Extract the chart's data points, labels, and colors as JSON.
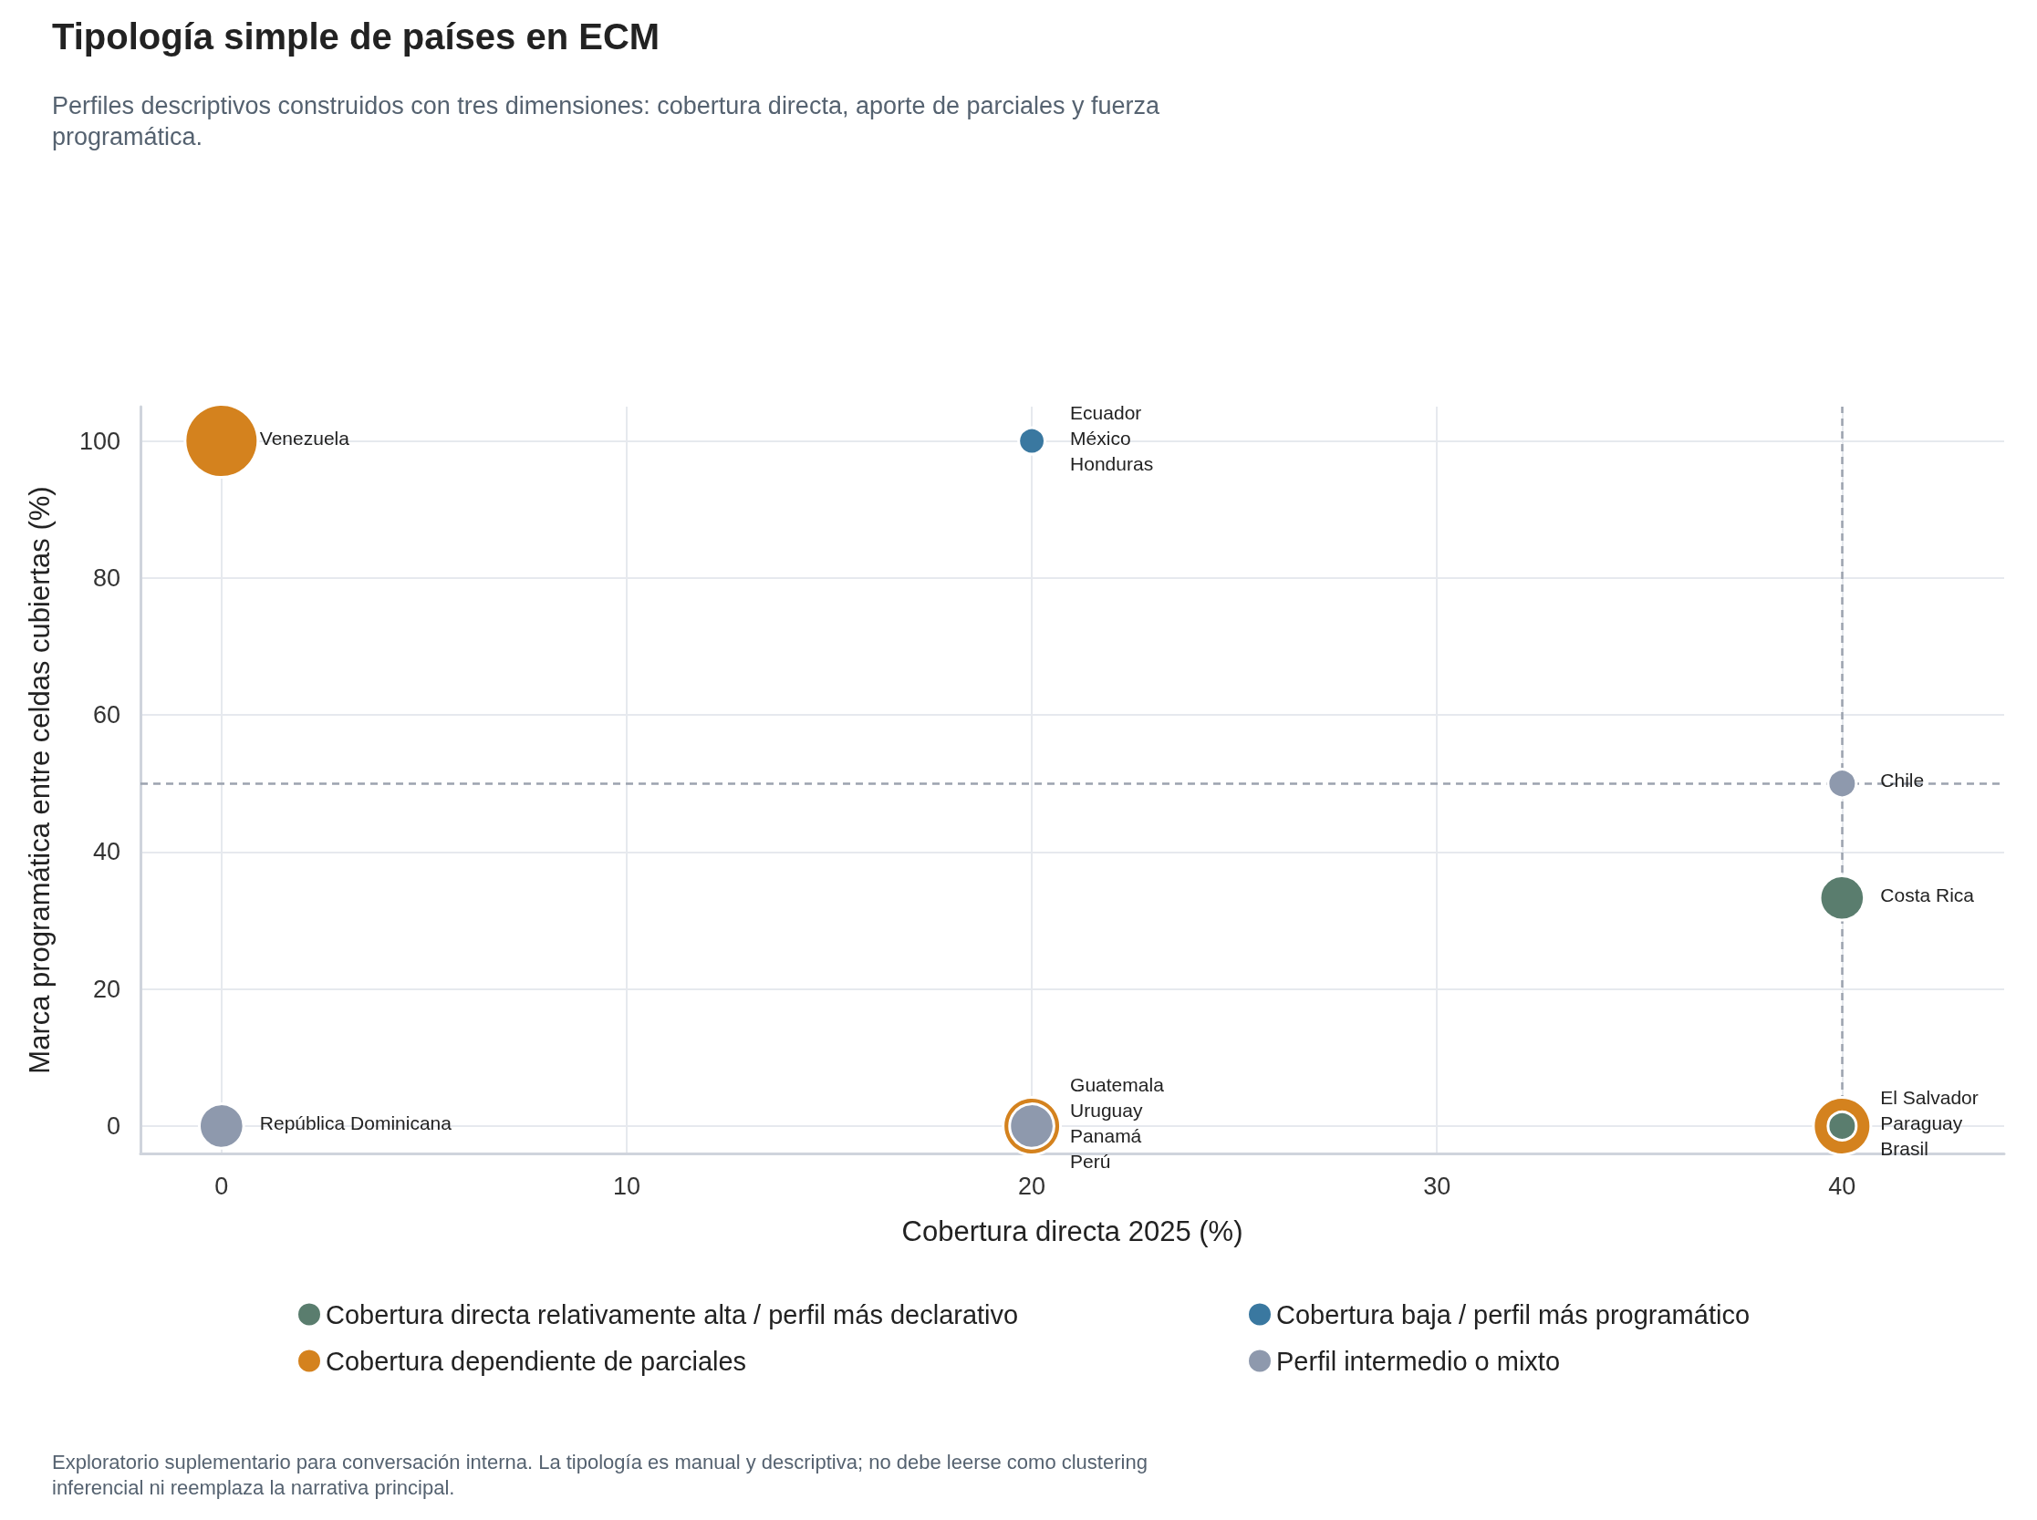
{
  "chart_data": {
    "type": "bubble",
    "title": "Tipología simple de países en ECM",
    "subtitle": "Perfiles descriptivos construidos con tres dimensiones: cobertura directa, aporte de parciales y fuerza programática.",
    "xlabel": "Cobertura directa 2025 (%)",
    "ylabel": "Marca programática entre celdas cubiertas (%)",
    "xlim": [
      -2,
      44
    ],
    "xticks": [
      0,
      10,
      20,
      30,
      40
    ],
    "ylim": [
      -4,
      105
    ],
    "yticks": [
      0,
      20,
      40,
      60,
      80,
      100
    ],
    "grid": true,
    "legend": "bottom",
    "marker": "circle",
    "series": [
      {
        "name": "Cobertura directa relativamente alta / perfil más declarativo",
        "color": "#5a7d6e",
        "x": [
          40,
          40
        ],
        "values": [
          33.3,
          0
        ],
        "sizes": [
          0.37,
          0.15
        ]
      },
      {
        "name": "Cobertura baja / perfil más programático",
        "color": "#3a78a0",
        "x": [
          20
        ],
        "values": [
          100
        ],
        "sizes": [
          0.13
        ]
      },
      {
        "name": "Cobertura dependiente de parciales",
        "color": "#d4821e",
        "x": [
          0,
          20,
          40
        ],
        "values": [
          100,
          0,
          0
        ],
        "sizes": [
          1,
          0.62,
          0.62
        ]
      },
      {
        "name": "Perfil intermedio o mixto",
        "color": "#8e99ad",
        "x": [
          0,
          20,
          40
        ],
        "values": [
          0,
          0,
          50
        ],
        "sizes": [
          0.37,
          0.37,
          0.15
        ]
      }
    ],
    "ref_lines": [
      {
        "axis": "x",
        "value": 40,
        "color": "#9ca3af",
        "line_style": "dashed"
      },
      {
        "axis": "y",
        "value": 50,
        "color": "#9ca3af",
        "line_style": "dashed"
      }
    ],
    "annotations": [
      {
        "text": "Venezuela",
        "x": 0,
        "y": 100
      },
      {
        "text": "Ecuador",
        "x": 20,
        "y": 100
      },
      {
        "text": "México",
        "x": 20,
        "y": 100
      },
      {
        "text": "Honduras",
        "x": 20,
        "y": 100
      },
      {
        "text": "Chile",
        "x": 40,
        "y": 50
      },
      {
        "text": "Costa Rica",
        "x": 40,
        "y": 33.3
      },
      {
        "text": "República Dominicana",
        "x": 0,
        "y": 0
      },
      {
        "text": "Guatemala",
        "x": 20,
        "y": 0
      },
      {
        "text": "Uruguay",
        "x": 20,
        "y": 0
      },
      {
        "text": "Panamá",
        "x": 20,
        "y": 0
      },
      {
        "text": "Perú",
        "x": 20,
        "y": 0
      },
      {
        "text": "El Salvador",
        "x": 40,
        "y": 0
      },
      {
        "text": "Paraguay",
        "x": 40,
        "y": 0
      },
      {
        "text": "Brasil",
        "x": 40,
        "y": 0
      },
      "Exploratorio suplementario para conversación interna. La tipología es manual y descriptiva; no debe leerse como clustering inferencial ni reemplaza la narrativa principal."
    ]
  }
}
